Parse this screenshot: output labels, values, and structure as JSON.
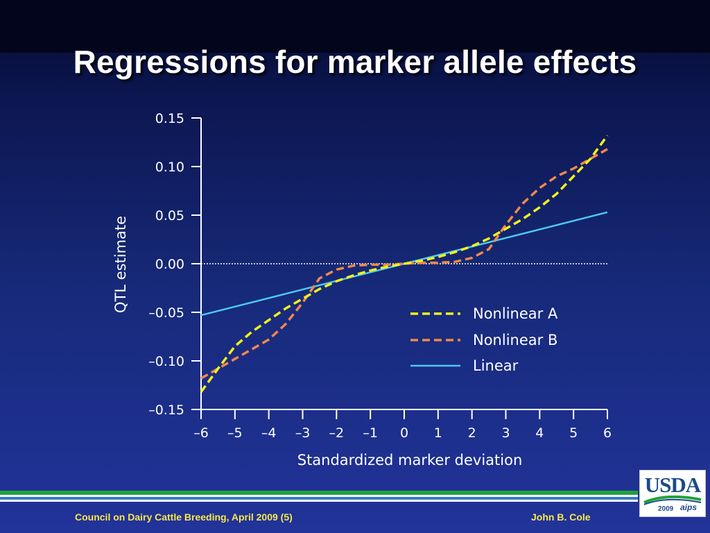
{
  "slide": {
    "title": "Regressions for marker allele effects",
    "footer_left": "Council on Dairy Cattle Breeding, April 2009 (5)",
    "footer_right": "John B. Cole",
    "logo": {
      "text": "USDA",
      "year": "2009",
      "mark": "aips"
    }
  },
  "colors": {
    "nonlinear_a": "#f2f21a",
    "nonlinear_b": "#f0884a",
    "linear": "#4cc8f0",
    "axis": "#ffffff",
    "accent_text": "#f7e84a"
  },
  "chart_data": {
    "type": "line",
    "title": "",
    "xlabel": "Standardized marker deviation",
    "ylabel": "QTL estimate",
    "xlim": [
      -6,
      6
    ],
    "ylim": [
      -0.15,
      0.15
    ],
    "xticks": [
      -6,
      -5,
      -4,
      -3,
      -2,
      -1,
      0,
      1,
      2,
      3,
      4,
      5,
      6
    ],
    "xtick_labels": [
      "–6",
      "–5",
      "–4",
      "–3",
      "–2",
      "–1",
      "0",
      "1",
      "2",
      "3",
      "4",
      "5",
      "6"
    ],
    "yticks": [
      -0.15,
      -0.1,
      -0.05,
      0.0,
      0.05,
      0.1,
      0.15
    ],
    "ytick_labels": [
      "–0.15",
      "–0.10",
      "–0.05",
      "0.00",
      "0.05",
      "0.10",
      "0.15"
    ],
    "reference_line": {
      "y": 0,
      "style": "dotted"
    },
    "legend_position": "center-right",
    "grid": false,
    "series": [
      {
        "name": "Nonlinear A",
        "style": "dashed",
        "x": [
          -6,
          -5.5,
          -5,
          -4.5,
          -4,
          -3.5,
          -3,
          -2.5,
          -2,
          -1.5,
          -1,
          -0.5,
          0,
          0.5,
          1,
          1.5,
          2,
          2.5,
          3,
          3.5,
          4,
          4.5,
          5,
          5.5,
          6
        ],
        "y": [
          -0.132,
          -0.108,
          -0.085,
          -0.07,
          -0.058,
          -0.046,
          -0.036,
          -0.026,
          -0.018,
          -0.012,
          -0.007,
          -0.003,
          0,
          0.003,
          0.007,
          0.012,
          0.018,
          0.026,
          0.036,
          0.046,
          0.058,
          0.072,
          0.09,
          0.108,
          0.132
        ]
      },
      {
        "name": "Nonlinear B",
        "style": "dashed",
        "x": [
          -6,
          -5.5,
          -5,
          -4.5,
          -4,
          -3.5,
          -3,
          -2.5,
          -2,
          -1.5,
          -1,
          -0.5,
          0,
          0.5,
          1,
          1.5,
          2,
          2.5,
          3,
          3.5,
          4,
          4.5,
          5,
          5.5,
          6
        ],
        "y": [
          -0.118,
          -0.108,
          -0.098,
          -0.088,
          -0.078,
          -0.062,
          -0.04,
          -0.015,
          -0.006,
          -0.002,
          -0.001,
          -0.001,
          0,
          0.001,
          0.001,
          0.002,
          0.006,
          0.015,
          0.04,
          0.062,
          0.078,
          0.09,
          0.098,
          0.108,
          0.118
        ]
      },
      {
        "name": "Linear",
        "style": "solid",
        "x": [
          -6,
          6
        ],
        "y": [
          -0.053,
          0.053
        ]
      }
    ]
  }
}
